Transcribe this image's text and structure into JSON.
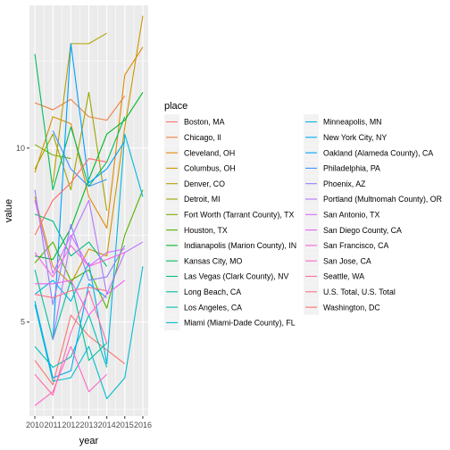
{
  "chart_data": {
    "type": "line",
    "xlabel": "year",
    "ylabel": "value",
    "x": [
      2010,
      2011,
      2012,
      2013,
      2014,
      2015,
      2016
    ],
    "xlim": [
      2009.7,
      2016.3
    ],
    "ylim": [
      2.3,
      14.1
    ],
    "yticks": [
      5,
      10
    ],
    "grid": true,
    "legend": {
      "title": "place",
      "placement": "right",
      "columns": 2
    },
    "series": [
      {
        "name": "Boston, MA",
        "color": "#F8766D",
        "values": [
          3.9,
          3.2,
          5.2,
          4.6,
          4.2,
          3.8,
          null
        ]
      },
      {
        "name": "Chicago, Il",
        "color": "#EE8043",
        "values": [
          11.3,
          11.1,
          11.4,
          10.9,
          10.8,
          11.5,
          null
        ]
      },
      {
        "name": "Cleveland, OH",
        "color": "#DF8A00",
        "values": [
          9.3,
          10.9,
          10.7,
          8.6,
          7.7,
          12.1,
          12.9
        ]
      },
      {
        "name": "Columbus, OH",
        "color": "#CD9600",
        "values": [
          8.6,
          6.6,
          6.1,
          7.1,
          6.9,
          10.6,
          13.8
        ]
      },
      {
        "name": "Denver, CO",
        "color": "#B79F00",
        "values": [
          null,
          9.0,
          13.0,
          13.0,
          13.3,
          null,
          null
        ]
      },
      {
        "name": "Detroit, MI",
        "color": "#9EA700",
        "values": [
          9.4,
          10.4,
          8.8,
          11.6,
          8.2,
          null,
          null
        ]
      },
      {
        "name": "Fort Worth (Tarrant County), TX",
        "color": "#7FAE00",
        "values": [
          10.1,
          9.8,
          9.7,
          null,
          null,
          null,
          null
        ]
      },
      {
        "name": "Houston, TX",
        "color": "#53B400",
        "values": [
          6.7,
          7.3,
          6.2,
          6.5,
          5.4,
          7.5,
          8.8
        ]
      },
      {
        "name": "Indianapolis (Marion County), IN",
        "color": "#00B92A",
        "values": [
          6.9,
          6.8,
          7.7,
          9.1,
          10.4,
          10.8,
          11.6
        ]
      },
      {
        "name": "Kansas City, MO",
        "color": "#00BD5C",
        "values": [
          12.7,
          8.8,
          10.6,
          8.9,
          9.6,
          10.9,
          null
        ]
      },
      {
        "name": "Las Vegas (Clark County), NV",
        "color": "#00BF7D",
        "values": [
          8.1,
          7.9,
          6.9,
          7.3,
          6.6,
          null,
          null
        ]
      },
      {
        "name": "Long Beach, CA",
        "color": "#00C19A",
        "values": [
          6.5,
          4.5,
          6.2,
          3.9,
          4.4,
          null,
          null
        ]
      },
      {
        "name": "Los Angeles, CA",
        "color": "#00C0B5",
        "values": [
          4.3,
          3.7,
          4.0,
          5.2,
          3.7,
          null,
          null
        ]
      },
      {
        "name": "Miami (Miami-Dade County), FL",
        "color": "#00BDCD",
        "values": [
          5.5,
          3.3,
          3.4,
          4.3,
          2.8,
          3.4,
          6.6
        ]
      },
      {
        "name": "Minneapolis, MN",
        "color": "#00B6E2",
        "values": [
          5.8,
          6.2,
          5.6,
          6.7,
          3.8,
          10.4,
          8.6
        ]
      },
      {
        "name": "New York City, NY",
        "color": "#00ACF5",
        "values": [
          5.6,
          3.4,
          3.6,
          6.1,
          5.7,
          null,
          null
        ]
      },
      {
        "name": "Oakland (Alameda County), CA",
        "color": "#00A0FF",
        "values": [
          null,
          4.5,
          13.0,
          9.0,
          9.4,
          10.2,
          null
        ]
      },
      {
        "name": "Philadelphia, PA",
        "color": "#3D92FF",
        "values": [
          null,
          10.5,
          9.4,
          8.9,
          9.1,
          null,
          null
        ]
      },
      {
        "name": "Phoenix, AZ",
        "color": "#8D83FF",
        "values": [
          8.8,
          5.5,
          7.8,
          6.2,
          6.3,
          7.2,
          null
        ]
      },
      {
        "name": "Portland (Multnomah County), OR",
        "color": "#B774FF",
        "values": [
          null,
          4.5,
          7.4,
          8.5,
          5.8,
          7.0,
          7.3
        ]
      },
      {
        "name": "San Antonio, TX",
        "color": "#D669FF",
        "values": [
          8.5,
          6.4,
          7.5,
          6.6,
          7.0,
          7.1,
          null
        ]
      },
      {
        "name": "San Diego County, CA",
        "color": "#EA63F5",
        "values": [
          6.1,
          6.1,
          6.2,
          5.2,
          5.8,
          6.2,
          null
        ]
      },
      {
        "name": "San Francisco, CA",
        "color": "#F763DF",
        "values": [
          7.0,
          6.3,
          7.2,
          6.6,
          6.8,
          7.0,
          null
        ]
      },
      {
        "name": "San Jose, CA",
        "color": "#FE66C5",
        "values": [
          2.6,
          3.0,
          4.3,
          3.0,
          3.5,
          null,
          null
        ]
      },
      {
        "name": "Seattle, WA",
        "color": "#FF6DA8",
        "values": [
          3.5,
          2.9,
          4.7,
          5.9,
          4.4,
          null,
          null
        ]
      },
      {
        "name": "U.S. Total, U.S. Total",
        "color": "#FE6E8A",
        "values": [
          5.8,
          5.7,
          5.9,
          6.0,
          5.9,
          null,
          null
        ]
      },
      {
        "name": "Washington, DC",
        "color": "#FC6E6B",
        "values": [
          7.5,
          8.5,
          9.0,
          9.7,
          9.6,
          null,
          null
        ]
      }
    ]
  }
}
